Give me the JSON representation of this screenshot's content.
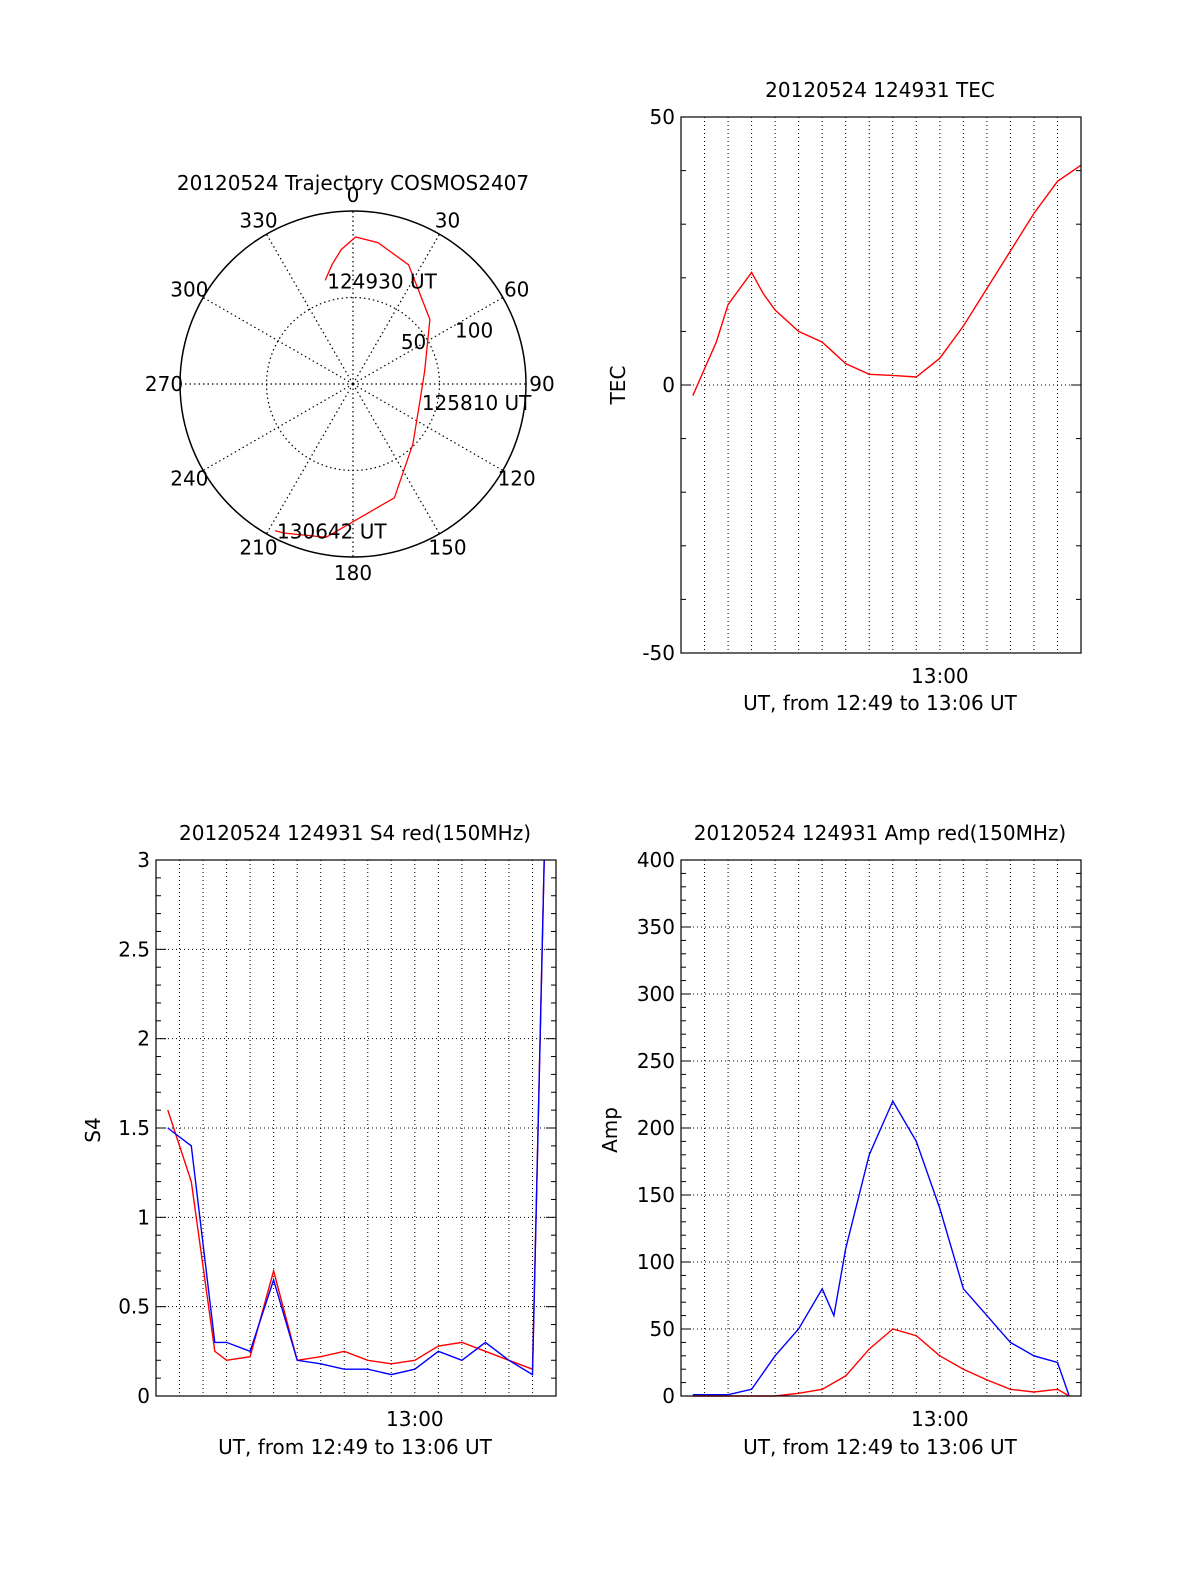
{
  "chart_data": [
    {
      "type": "polar",
      "title": "20120524 Trajectory COSMOS2407",
      "angle_labels": [
        "0",
        "30",
        "60",
        "90",
        "120",
        "150",
        "180",
        "210",
        "240",
        "270",
        "300",
        "330"
      ],
      "radial_ticks": [
        50,
        100
      ],
      "trajectory": {
        "color": "#ff0000",
        "points": [
          [
            345,
            62
          ],
          [
            350,
            70
          ],
          [
            355,
            78
          ],
          [
            1,
            85
          ],
          [
            10,
            83
          ],
          [
            25,
            76
          ],
          [
            50,
            58
          ],
          [
            80,
            42
          ],
          [
            105,
            40
          ],
          [
            135,
            49
          ],
          [
            160,
            70
          ],
          [
            190,
            90
          ],
          [
            205,
            95
          ],
          [
            208,
            96
          ]
        ],
        "markers": [
          {
            "label": "124930 UT",
            "az": 345,
            "el": 62
          },
          {
            "label": "125810 UT",
            "az": 105,
            "el": 40
          },
          {
            "label": "130642 UT",
            "az": 208,
            "el": 96
          }
        ]
      }
    },
    {
      "type": "line",
      "title": "20120524 124931 TEC",
      "xlabel": "UT, from 12:49 to 13:06 UT",
      "ylabel": "TEC",
      "xlim": [
        "12:49",
        "13:06"
      ],
      "ylim": [
        -50,
        50
      ],
      "yticks": [
        -50,
        0,
        50
      ],
      "xticks": [
        {
          "t": "13:00",
          "label": "13:00"
        }
      ],
      "grid": true,
      "series": [
        {
          "color": "#ff0000",
          "x": [
            "12:49:30",
            "12:50:00",
            "12:50:30",
            "12:51:00",
            "12:51:30",
            "12:52:00",
            "12:52:30",
            "12:53:00",
            "12:54:00",
            "12:55:00",
            "12:55:30",
            "12:56:00",
            "12:57:00",
            "12:58:00",
            "12:59:00",
            "13:00:00",
            "13:01:00",
            "13:02:00",
            "13:03:00",
            "13:04:00",
            "13:05:00",
            "13:06:00"
          ],
          "y": [
            -2,
            3,
            8,
            15,
            18,
            21,
            17,
            14,
            10,
            8,
            6,
            4,
            2,
            1.8,
            1.5,
            5,
            11,
            18,
            25,
            32,
            38,
            41
          ]
        }
      ]
    },
    {
      "type": "line",
      "title": "20120524 124931 S4 red(150MHz)",
      "xlabel": "UT, from 12:49 to 13:06 UT",
      "ylabel": "S4",
      "xlim": [
        "12:49",
        "13:06"
      ],
      "ylim": [
        0,
        3
      ],
      "yticks": [
        0,
        0.5,
        1,
        1.5,
        2,
        2.5,
        3
      ],
      "xticks": [
        {
          "t": "13:00",
          "label": "13:00"
        }
      ],
      "grid": true,
      "series": [
        {
          "color": "#ff0000",
          "x": [
            "12:49:30",
            "12:50:30",
            "12:51:30",
            "12:52:00",
            "12:53:00",
            "12:54:00",
            "12:55:00",
            "12:56:00",
            "12:57:00",
            "12:58:00",
            "12:59:00",
            "13:00:00",
            "13:01:00",
            "13:02:00",
            "13:03:00",
            "13:04:00",
            "13:05:00",
            "13:05:30"
          ],
          "y": [
            1.6,
            1.2,
            0.25,
            0.2,
            0.22,
            0.7,
            0.2,
            0.22,
            0.25,
            0.2,
            0.18,
            0.2,
            0.28,
            0.3,
            0.25,
            0.2,
            0.15,
            3.0
          ]
        },
        {
          "color": "#0000ff",
          "x": [
            "12:49:30",
            "12:50:30",
            "12:51:30",
            "12:52:00",
            "12:53:00",
            "12:54:00",
            "12:55:00",
            "12:56:00",
            "12:57:00",
            "12:58:00",
            "12:59:00",
            "13:00:00",
            "13:01:00",
            "13:02:00",
            "13:03:00",
            "13:04:00",
            "13:05:00",
            "13:05:30"
          ],
          "y": [
            1.5,
            1.4,
            0.3,
            0.3,
            0.25,
            0.65,
            0.2,
            0.18,
            0.15,
            0.15,
            0.12,
            0.15,
            0.25,
            0.2,
            0.3,
            0.2,
            0.12,
            3.0
          ]
        }
      ]
    },
    {
      "type": "line",
      "title": "20120524 124931 Amp red(150MHz)",
      "xlabel": "UT, from 12:49 to 13:06 UT",
      "ylabel": "Amp",
      "xlim": [
        "12:49",
        "13:06"
      ],
      "ylim": [
        0,
        400
      ],
      "yticks": [
        0,
        50,
        100,
        150,
        200,
        250,
        300,
        350,
        400
      ],
      "xticks": [
        {
          "t": "13:00",
          "label": "13:00"
        }
      ],
      "grid": true,
      "series": [
        {
          "color": "#0000ff",
          "x": [
            "12:49:30",
            "12:51:00",
            "12:52:00",
            "12:53:00",
            "12:54:00",
            "12:55:00",
            "12:55:30",
            "12:56:00",
            "12:57:00",
            "12:58:00",
            "12:59:00",
            "13:00:00",
            "13:01:00",
            "13:02:00",
            "13:03:00",
            "13:04:00",
            "13:05:00",
            "13:05:30"
          ],
          "y": [
            1,
            1,
            5,
            30,
            50,
            80,
            60,
            110,
            180,
            220,
            190,
            140,
            80,
            60,
            40,
            30,
            25,
            0
          ]
        },
        {
          "color": "#ff0000",
          "x": [
            "12:49:30",
            "12:53:00",
            "12:54:00",
            "12:55:00",
            "12:56:00",
            "12:57:00",
            "12:58:00",
            "12:59:00",
            "13:00:00",
            "13:01:00",
            "13:02:00",
            "13:03:00",
            "13:04:00",
            "13:05:00",
            "13:05:30"
          ],
          "y": [
            0,
            0,
            2,
            5,
            15,
            35,
            50,
            45,
            30,
            20,
            12,
            5,
            3,
            5,
            0
          ]
        }
      ]
    }
  ]
}
